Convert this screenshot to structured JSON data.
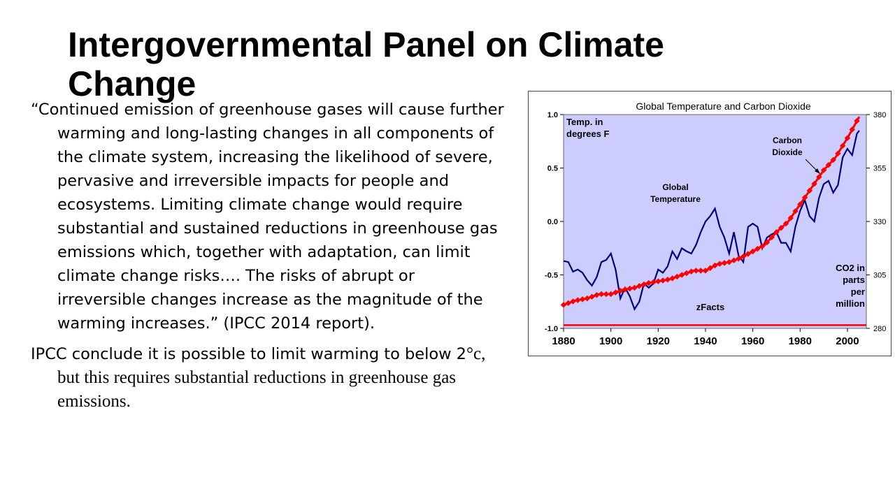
{
  "slide": {
    "title": "Intergovernmental Panel on Climate Change",
    "quote": "“Continued emission of greenhouse gases will cause further warming and long-lasting changes in all components of the climate system, increasing the likelihood of severe, pervasive and irreversible impacts for people and ecosystems. Limiting climate change would require substantial and sustained reductions in greenhouse gas emissions which, together with adaptation, can limit climate change risks…. The risks of abrupt or irreversible changes increase as the magnitude of the warming increases.” (IPCC 2014 report).",
    "conclusion_lead": "IPCC conclude it is possible to limit warming to below 2",
    "conclusion_tail": "°c, but this requires substantial reductions in greenhouse gas emissions."
  },
  "colors": {
    "plot_background": "#ccccff",
    "temperature_line": "#000080",
    "co2_line": "#ff0000",
    "baseline": "#ff0000"
  },
  "chart_data": {
    "type": "line",
    "title": "Global Temperature and Carbon Dioxide",
    "left_axis_label": "Temp. in\ndegrees F",
    "right_axis_label": "CO2 in\nparts\nper\nmillion",
    "source_label": "zFacts",
    "annotations": [
      "Global\nTemperature",
      "Carbon\nDioxide"
    ],
    "xlim": [
      1880,
      2008
    ],
    "x_ticks": [
      "1880",
      "1900",
      "1920",
      "1940",
      "1960",
      "1980",
      "2000"
    ],
    "ylim_left": [
      -1.0,
      1.0
    ],
    "y_ticks_left": [
      "1.0",
      "0.5",
      "0.0",
      "-0.5",
      "-1.0"
    ],
    "ylim_right": [
      280,
      380
    ],
    "y_ticks_right": [
      "380",
      "355",
      "330",
      "305",
      "280"
    ],
    "grid": false,
    "series": [
      {
        "name": "Global Temperature",
        "axis": "left",
        "x": [
          1880,
          1882,
          1884,
          1886,
          1888,
          1890,
          1892,
          1894,
          1896,
          1898,
          1900,
          1902,
          1904,
          1906,
          1908,
          1910,
          1912,
          1914,
          1916,
          1918,
          1920,
          1922,
          1924,
          1926,
          1928,
          1930,
          1932,
          1934,
          1936,
          1938,
          1940,
          1942,
          1944,
          1946,
          1948,
          1950,
          1952,
          1954,
          1956,
          1958,
          1960,
          1962,
          1964,
          1966,
          1968,
          1970,
          1972,
          1974,
          1976,
          1978,
          1980,
          1982,
          1984,
          1986,
          1988,
          1990,
          1992,
          1994,
          1996,
          1998,
          2000,
          2002,
          2004,
          2005
        ],
        "y": [
          -0.37,
          -0.38,
          -0.47,
          -0.45,
          -0.48,
          -0.55,
          -0.6,
          -0.52,
          -0.38,
          -0.36,
          -0.3,
          -0.45,
          -0.72,
          -0.62,
          -0.7,
          -0.82,
          -0.75,
          -0.58,
          -0.62,
          -0.58,
          -0.45,
          -0.48,
          -0.42,
          -0.28,
          -0.35,
          -0.25,
          -0.28,
          -0.3,
          -0.22,
          -0.1,
          0.0,
          0.05,
          0.12,
          -0.05,
          -0.15,
          -0.3,
          -0.1,
          -0.32,
          -0.38,
          -0.05,
          -0.02,
          -0.05,
          -0.25,
          -0.15,
          -0.12,
          -0.1,
          -0.2,
          -0.2,
          -0.28,
          -0.05,
          0.1,
          0.2,
          0.05,
          0.0,
          0.22,
          0.35,
          0.38,
          0.27,
          0.34,
          0.6,
          0.68,
          0.62,
          0.82,
          0.85
        ]
      },
      {
        "name": "Carbon Dioxide",
        "axis": "right",
        "x": [
          1880,
          1885,
          1890,
          1895,
          1900,
          1905,
          1910,
          1915,
          1920,
          1925,
          1930,
          1935,
          1940,
          1945,
          1950,
          1955,
          1960,
          1965,
          1970,
          1975,
          1980,
          1985,
          1990,
          1995,
          2000,
          2005
        ],
        "y": [
          291,
          293,
          294,
          296,
          296,
          298,
          299,
          301,
          302,
          303,
          305,
          307,
          307,
          310,
          311,
          313,
          316,
          319,
          325,
          330,
          338,
          346,
          354,
          360,
          369,
          379
        ]
      }
    ]
  }
}
